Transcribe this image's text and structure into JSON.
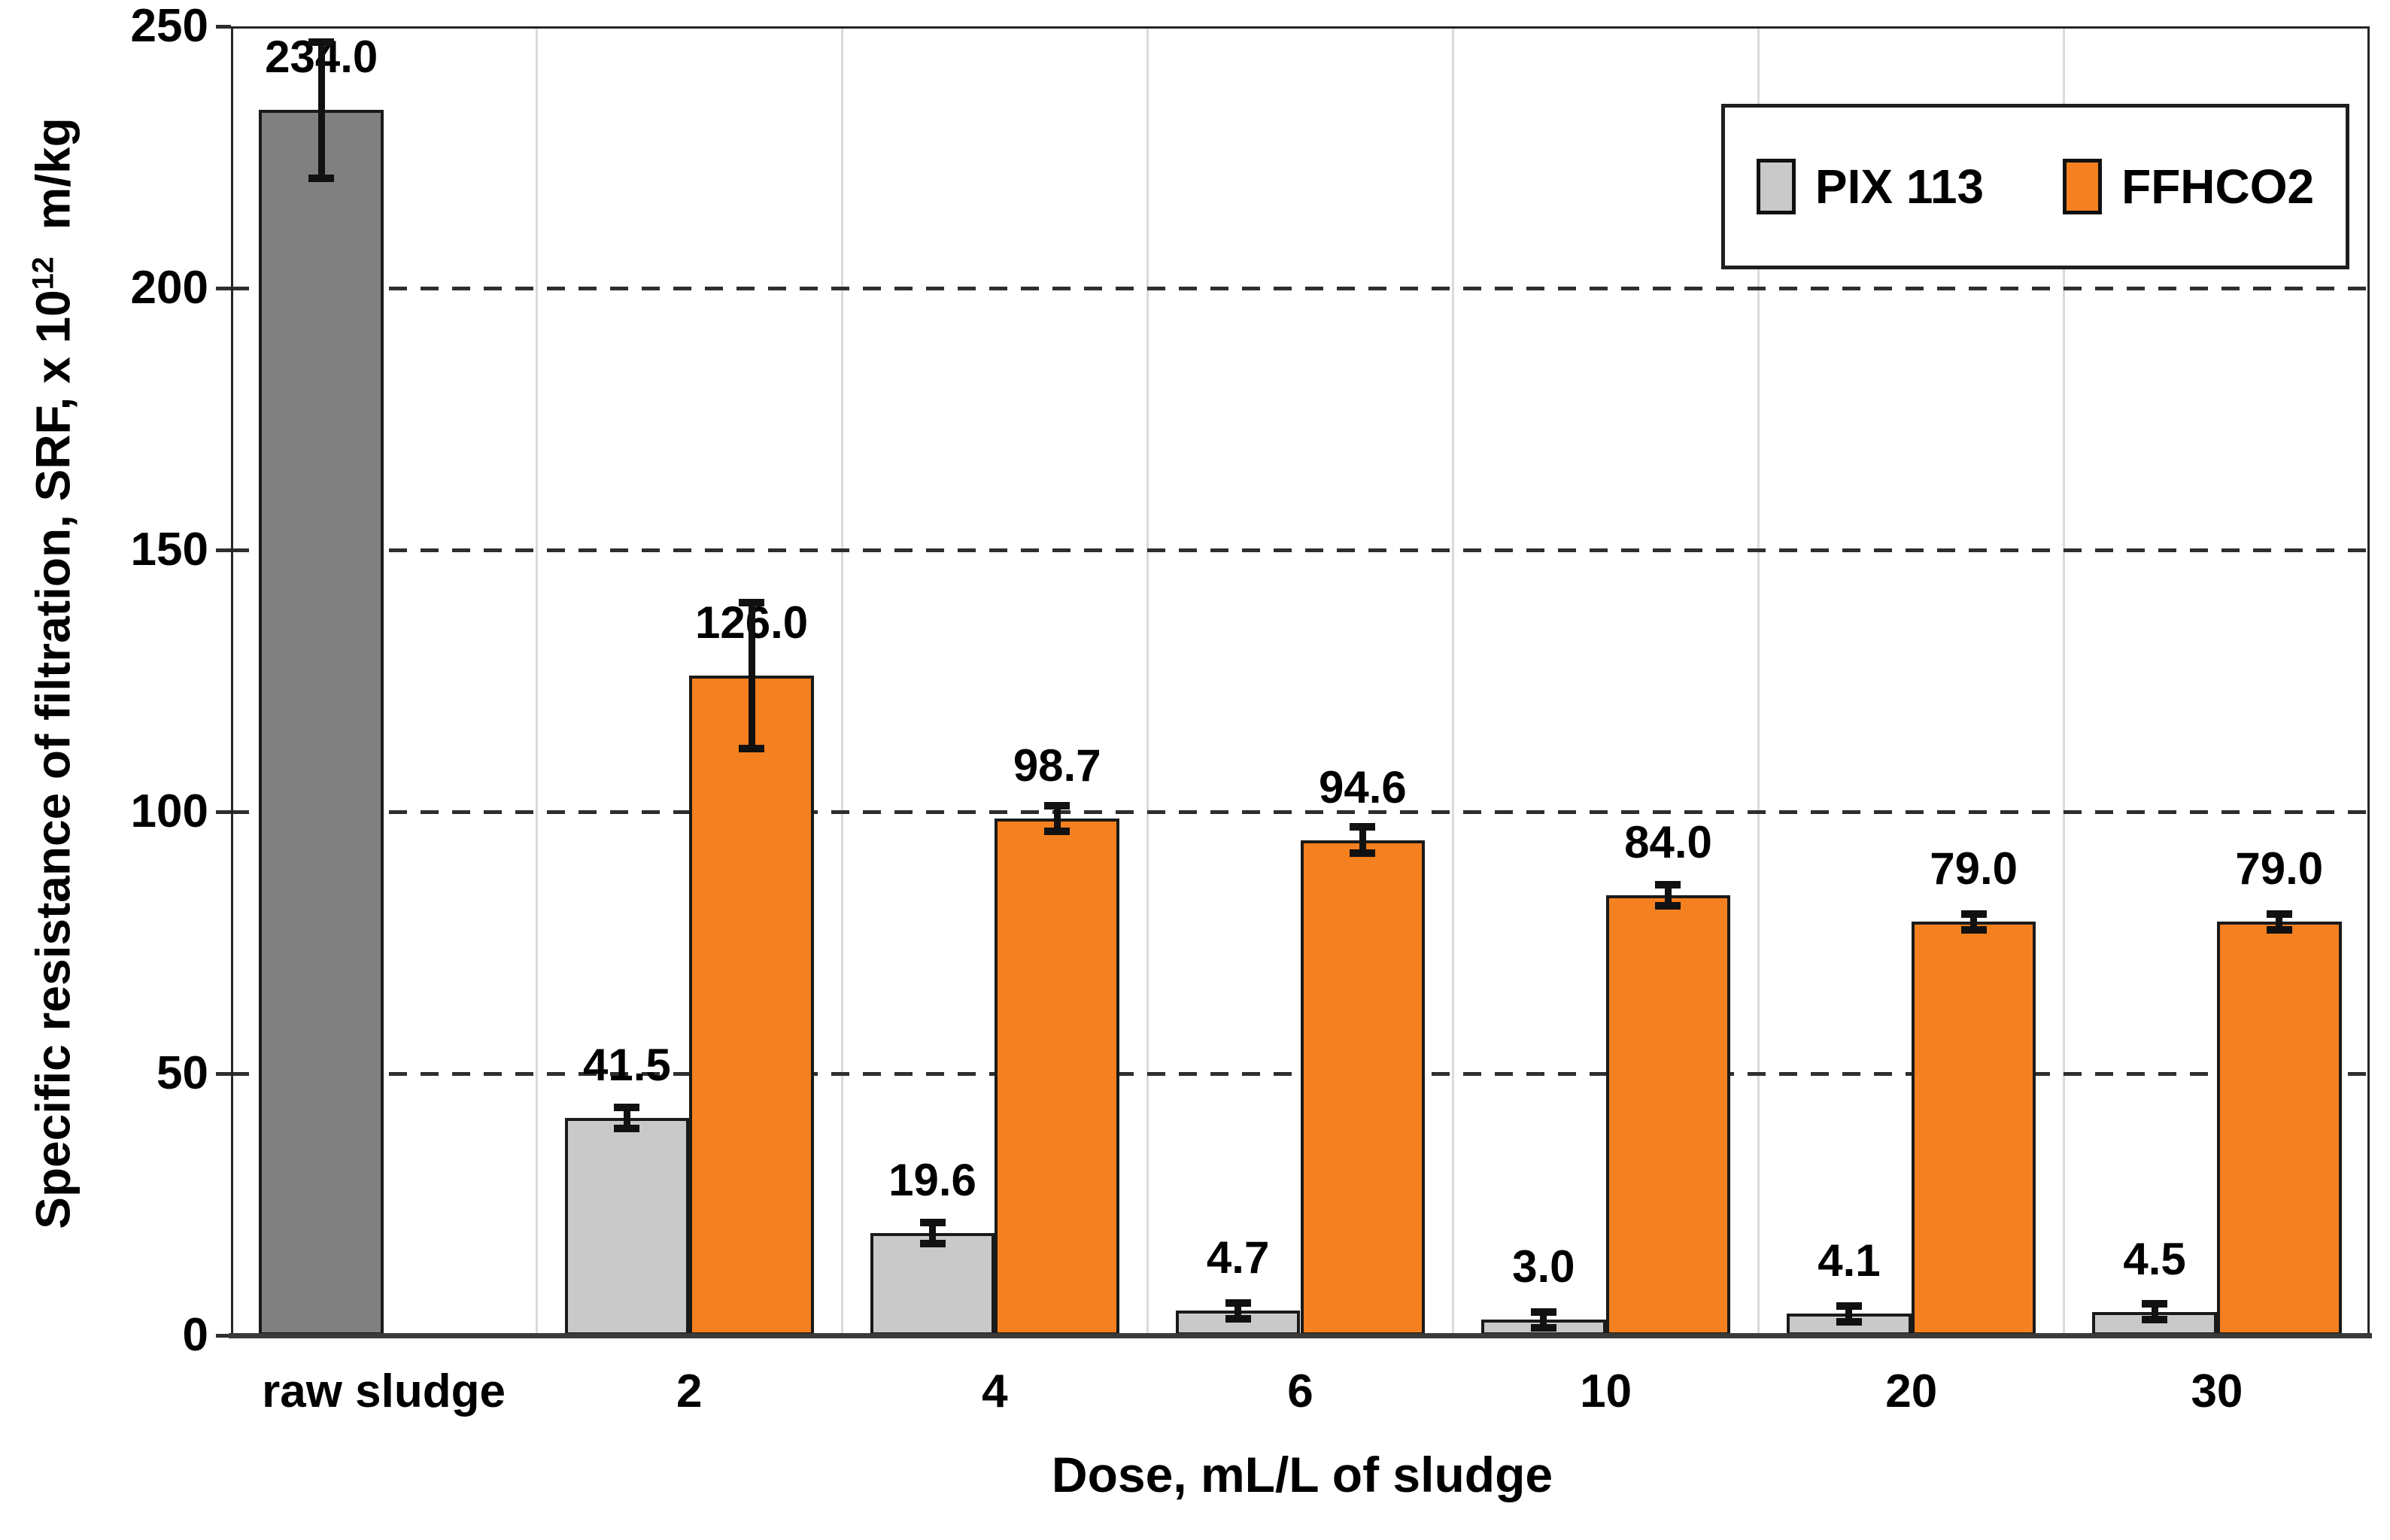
{
  "chart_data": {
    "type": "bar",
    "title": "",
    "xlabel": "Dose, mL/L of sludge",
    "ylabel_prefix": "Specific resistance of filtration, SRF, x 10",
    "ylabel_sup": "12",
    "ylabel_suffix": "  m/kg",
    "ylim": [
      0,
      250
    ],
    "yticks": [
      0,
      50,
      100,
      150,
      200,
      250
    ],
    "ytick_labels": [
      "0",
      "50",
      "100",
      "150",
      "200",
      "250"
    ],
    "grid": {
      "horizontal": "dashed-dark",
      "vertical": "solid-light-at-category-boundaries"
    },
    "legend_position": "top-right-inside",
    "categories": [
      "raw sludge",
      "2",
      "4",
      "6",
      "10",
      "20",
      "30"
    ],
    "series": [
      {
        "name": "PIX 113",
        "color": "#C9C9C9",
        "values": [
          234.0,
          41.5,
          19.6,
          4.7,
          3.0,
          4.1,
          4.5
        ],
        "labels": [
          "234.0",
          "41.5",
          "19.6",
          "4.7",
          "3.0",
          "4.1",
          "4.5"
        ],
        "errors": [
          13,
          2,
          2,
          1.5,
          1.5,
          1.5,
          1.5
        ]
      },
      {
        "name": "FFHCO2",
        "color": "#F5801F",
        "values": [
          null,
          126.0,
          98.7,
          94.6,
          84.0,
          79.0,
          79.0
        ],
        "labels": [
          null,
          "126.0",
          "98.7",
          "94.6",
          "84.0",
          "79.0",
          "79.0"
        ],
        "errors": [
          null,
          14,
          2.5,
          2.5,
          2,
          1.5,
          1.5
        ]
      }
    ],
    "raw_bar_color": "#808080",
    "bar_border_color": "#1a1a1a",
    "error_bar_color": "#111111"
  },
  "legend": {
    "items": [
      {
        "label": "PIX 113",
        "color": "#C9C9C9"
      },
      {
        "label": "FFHCO2",
        "color": "#F5801F"
      }
    ]
  }
}
